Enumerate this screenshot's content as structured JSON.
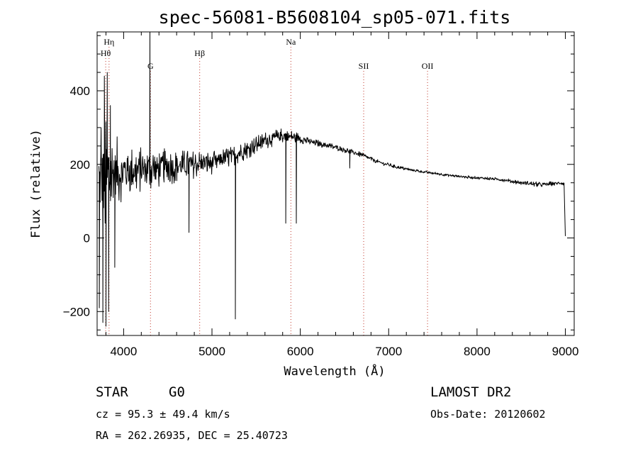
{
  "chart_data": {
    "type": "line",
    "title": "spec-56081-B5608104_sp05-071.fits",
    "xlabel": "Wavelength (Å)",
    "ylabel": "Flux (relative)",
    "xlim": [
      3700,
      9100
    ],
    "ylim": [
      -265,
      560
    ],
    "xticks": [
      4000,
      5000,
      6000,
      7000,
      8000,
      9000
    ],
    "xtick_labels": [
      "4000",
      "5000",
      "6000",
      "7000",
      "8000",
      "9000"
    ],
    "yticks": [
      -200,
      0,
      200,
      400
    ],
    "ytick_labels": [
      "−200",
      "0",
      "200",
      "400"
    ],
    "grid": false,
    "spectral_lines": [
      {
        "label": "Hη",
        "wavelength": 3835
      },
      {
        "label": "Hθ",
        "wavelength": 3797
      },
      {
        "label": "G",
        "wavelength": 4304
      },
      {
        "label": "Hβ",
        "wavelength": 4861
      },
      {
        "label": "Na",
        "wavelength": 5893
      },
      {
        "label": "SII",
        "wavelength": 6717
      },
      {
        "label": "OII",
        "wavelength": 7440
      }
    ],
    "series": [
      {
        "color": "#000000",
        "continuum": [
          [
            3720,
            150
          ],
          [
            3800,
            155
          ],
          [
            3900,
            175
          ],
          [
            4000,
            180
          ],
          [
            4200,
            185
          ],
          [
            4400,
            190
          ],
          [
            4600,
            195
          ],
          [
            4800,
            200
          ],
          [
            5000,
            205
          ],
          [
            5200,
            220
          ],
          [
            5400,
            240
          ],
          [
            5600,
            265
          ],
          [
            5800,
            278
          ],
          [
            5950,
            273
          ],
          [
            6100,
            262
          ],
          [
            6300,
            252
          ],
          [
            6500,
            240
          ],
          [
            6700,
            225
          ],
          [
            6900,
            205
          ],
          [
            7100,
            192
          ],
          [
            7300,
            183
          ],
          [
            7500,
            176
          ],
          [
            7700,
            170
          ],
          [
            7900,
            165
          ],
          [
            8100,
            162
          ],
          [
            8300,
            158
          ],
          [
            8500,
            150
          ],
          [
            8700,
            145
          ],
          [
            8900,
            148
          ],
          [
            8960,
            150
          ],
          [
            8985,
            145
          ]
        ],
        "noise": [
          [
            3700,
            140
          ],
          [
            3800,
            170
          ],
          [
            3850,
            130
          ],
          [
            4000,
            70
          ],
          [
            4300,
            60
          ],
          [
            4600,
            45
          ],
          [
            5000,
            32
          ],
          [
            5400,
            25
          ],
          [
            5800,
            22
          ],
          [
            6100,
            10
          ],
          [
            6500,
            8
          ],
          [
            7000,
            5
          ],
          [
            7500,
            4
          ],
          [
            8000,
            4
          ],
          [
            8500,
            6
          ],
          [
            8700,
            7
          ],
          [
            9000,
            6
          ]
        ],
        "features": [
          {
            "x": 3725,
            "y": -190
          },
          {
            "x": 3745,
            "y": 300
          },
          {
            "x": 3765,
            "y": -230
          },
          {
            "x": 3782,
            "y": 440
          },
          {
            "x": 3800,
            "y": -240
          },
          {
            "x": 3815,
            "y": 450
          },
          {
            "x": 3830,
            "y": -200
          },
          {
            "x": 3850,
            "y": 360
          },
          {
            "x": 3900,
            "y": -80
          },
          {
            "x": 4298,
            "y": 560
          },
          {
            "x": 4740,
            "y": 15
          },
          {
            "x": 5265,
            "y": -220
          },
          {
            "x": 5835,
            "y": 40
          },
          {
            "x": 5955,
            "y": 40
          },
          {
            "x": 6560,
            "y": 190
          },
          {
            "x": 8980,
            "y": 150
          },
          {
            "x": 9000,
            "y": 5
          }
        ]
      }
    ]
  },
  "info": {
    "object_class": "STAR",
    "subclass": "G0",
    "survey": "LAMOST DR2",
    "obs_date": "Obs-Date: 20120602",
    "redshift": "cz = 95.3 ± 49.4 km/s",
    "coords": "RA = 262.26935, DEC =  25.40723"
  }
}
